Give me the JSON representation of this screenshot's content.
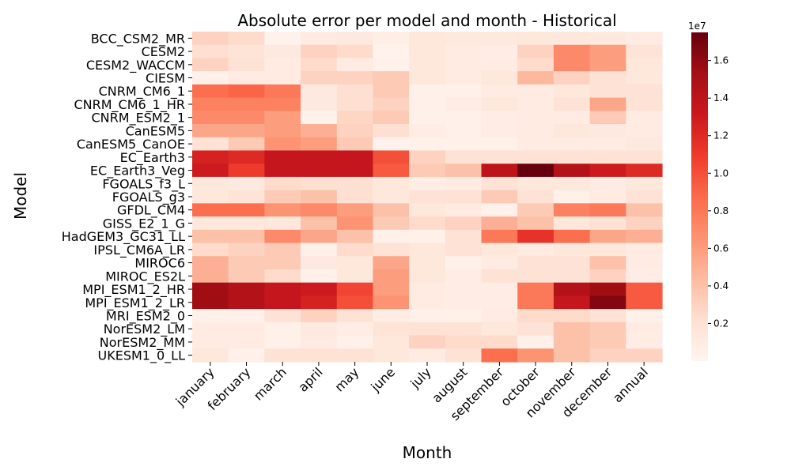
{
  "chart_data": {
    "type": "heatmap",
    "title": "Absolute error per model and month - Historical",
    "xlabel": "Month",
    "ylabel": "Model",
    "x_categories": [
      "january",
      "february",
      "march",
      "april",
      "may",
      "june",
      "july",
      "august",
      "september",
      "october",
      "november",
      "december",
      "annual"
    ],
    "y_categories": [
      "BCC_CSM2_MR",
      "CESM2",
      "CESM2_WACCM",
      "CIESM",
      "CNRM_CM6_1",
      "CNRM_CM6_1_HR",
      "CNRM_ESM2_1",
      "CanESM5",
      "CanESM5_CanOE",
      "EC_Earth3",
      "EC_Earth3_Veg",
      "FGOALS_f3_L",
      "FGOALS_g3",
      "GFDL_CM4",
      "GISS_E2_1_G",
      "HadGEM3_GC31_LL",
      "IPSL_CM6A_LR",
      "MIROC6",
      "MIROC_ES2L",
      "MPI_ESM1_2_HR",
      "MPI_ESM1_2_LR",
      "MRI_ESM2_0",
      "NorESM2_LM",
      "NorESM2_MM",
      "UKESM1_0_LL"
    ],
    "values": [
      [
        0.3,
        0.25,
        0.03,
        0.1,
        0.12,
        0.07,
        0.15,
        0.13,
        0.13,
        0.15,
        0.15,
        0.13,
        0.1
      ],
      [
        0.22,
        0.18,
        0.12,
        0.3,
        0.25,
        0.03,
        0.15,
        0.1,
        0.08,
        0.3,
        0.7,
        0.6,
        0.18
      ],
      [
        0.3,
        0.2,
        0.1,
        0.25,
        0.1,
        0.05,
        0.15,
        0.1,
        0.1,
        0.25,
        0.7,
        0.6,
        0.15
      ],
      [
        0.05,
        0.1,
        0.1,
        0.3,
        0.3,
        0.35,
        0.15,
        0.1,
        0.15,
        0.45,
        0.3,
        0.2,
        0.15
      ],
      [
        0.85,
        0.9,
        0.8,
        0.12,
        0.22,
        0.35,
        0.05,
        0.05,
        0.1,
        0.1,
        0.15,
        0.2,
        0.2
      ],
      [
        0.75,
        0.75,
        0.75,
        0.12,
        0.22,
        0.3,
        0.05,
        0.08,
        0.15,
        0.1,
        0.2,
        0.55,
        0.2
      ],
      [
        0.7,
        0.7,
        0.6,
        0.03,
        0.28,
        0.35,
        0.05,
        0.05,
        0.08,
        0.1,
        0.1,
        0.35,
        0.1
      ],
      [
        0.55,
        0.55,
        0.6,
        0.5,
        0.3,
        0.22,
        0.08,
        0.05,
        0.08,
        0.1,
        0.15,
        0.12,
        0.1
      ],
      [
        0.2,
        0.35,
        0.65,
        0.6,
        0.35,
        0.03,
        0.05,
        0.05,
        0.05,
        0.1,
        0.1,
        0.1,
        0.12
      ],
      [
        1.25,
        1.2,
        1.35,
        1.35,
        1.35,
        1.0,
        0.3,
        0.2,
        0.2,
        0.2,
        0.2,
        0.2,
        0.2
      ],
      [
        1.3,
        1.1,
        1.35,
        1.35,
        1.35,
        0.95,
        0.35,
        0.4,
        1.4,
        1.75,
        1.45,
        1.3,
        1.2
      ],
      [
        0.15,
        0.12,
        0.25,
        0.22,
        0.22,
        0.15,
        0.08,
        0.1,
        0.2,
        0.15,
        0.15,
        0.1,
        0.15
      ],
      [
        0.15,
        0.18,
        0.35,
        0.4,
        0.22,
        0.15,
        0.2,
        0.2,
        0.35,
        0.2,
        0.05,
        0.1,
        0.2
      ],
      [
        0.85,
        0.85,
        0.65,
        0.7,
        0.6,
        0.4,
        0.15,
        0.1,
        0.05,
        0.35,
        0.75,
        0.8,
        0.4
      ],
      [
        0.15,
        0.15,
        0.15,
        0.4,
        0.65,
        0.35,
        0.25,
        0.3,
        0.5,
        0.4,
        0.15,
        0.2,
        0.3
      ],
      [
        0.4,
        0.4,
        0.7,
        0.55,
        0.4,
        0.05,
        0.05,
        0.2,
        0.8,
        1.15,
        0.85,
        0.55,
        0.5
      ],
      [
        0.25,
        0.3,
        0.35,
        0.05,
        0.25,
        0.2,
        0.15,
        0.2,
        0.15,
        0.1,
        0.15,
        0.15,
        0.1
      ],
      [
        0.5,
        0.35,
        0.35,
        0.12,
        0.15,
        0.55,
        0.15,
        0.05,
        0.1,
        0.2,
        0.2,
        0.4,
        0.1
      ],
      [
        0.5,
        0.35,
        0.25,
        0.05,
        0.15,
        0.6,
        0.15,
        0.08,
        0.2,
        0.2,
        0.2,
        0.3,
        0.08
      ],
      [
        1.55,
        1.45,
        1.35,
        1.3,
        1.05,
        0.6,
        0.1,
        0.08,
        0.08,
        0.8,
        1.45,
        1.55,
        0.95
      ],
      [
        1.55,
        1.45,
        1.35,
        1.25,
        1.0,
        0.65,
        0.1,
        0.08,
        0.08,
        0.8,
        1.35,
        1.65,
        0.95
      ],
      [
        0.05,
        0.05,
        0.2,
        0.3,
        0.2,
        0.08,
        0.05,
        0.05,
        0.1,
        0.25,
        0.25,
        0.2,
        0.05
      ],
      [
        0.1,
        0.1,
        0.05,
        0.12,
        0.08,
        0.18,
        0.2,
        0.2,
        0.15,
        0.2,
        0.4,
        0.35,
        0.1
      ],
      [
        0.1,
        0.1,
        0.05,
        0.1,
        0.05,
        0.15,
        0.3,
        0.25,
        0.25,
        0.05,
        0.4,
        0.35,
        0.08
      ],
      [
        0.15,
        0.05,
        0.2,
        0.2,
        0.2,
        0.15,
        0.1,
        0.2,
        0.85,
        0.65,
        0.4,
        0.3,
        0.3
      ]
    ],
    "value_multiplier": 10000000,
    "colorbar": {
      "range": [
        0.0,
        1.75
      ],
      "ticks": [
        0.2,
        0.4,
        0.6,
        0.8,
        1.0,
        1.2,
        1.4,
        1.6
      ],
      "tick_labels": [
        "0.2",
        "0.4",
        "0.6",
        "0.8",
        "1.0",
        "1.2",
        "1.4",
        "1.6"
      ],
      "offset_label": "1e7"
    },
    "colormap": "Reds",
    "colormap_stops": [
      "#fff5f0",
      "#fee0d2",
      "#fcbba1",
      "#fc9272",
      "#fb6a4a",
      "#ef3b2c",
      "#cb181d",
      "#a50f15",
      "#67000d"
    ],
    "grid": false,
    "legend": "colorbar-right"
  }
}
